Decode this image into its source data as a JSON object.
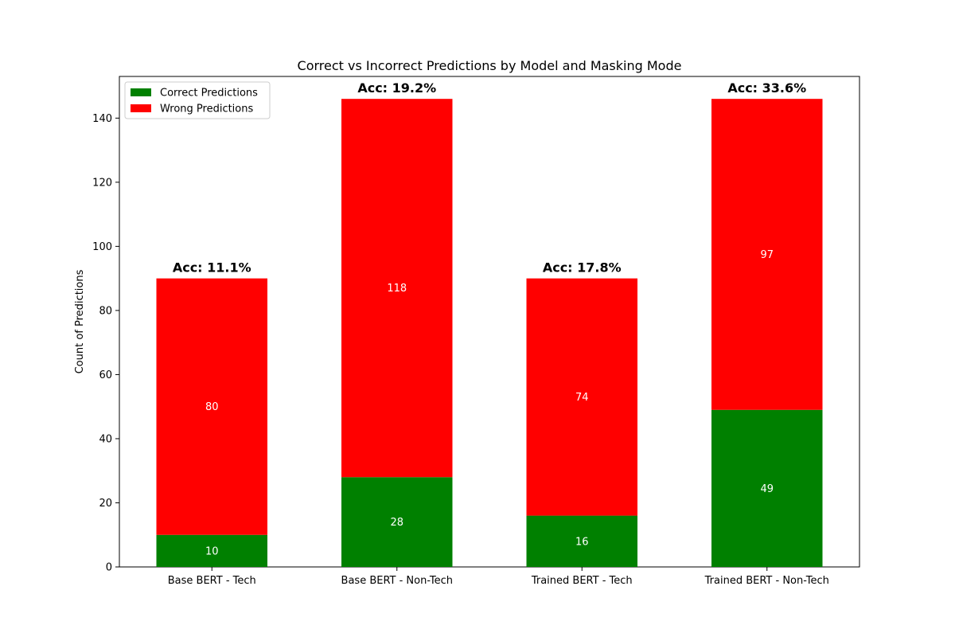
{
  "chart_data": {
    "type": "bar",
    "stacked": true,
    "title": "Correct vs Incorrect Predictions by Model and Masking Mode",
    "xlabel": "",
    "ylabel": "Count of Predictions",
    "categories": [
      "Base BERT - Tech",
      "Base BERT - Non-Tech",
      "Trained BERT - Tech",
      "Trained BERT - Non-Tech"
    ],
    "series": [
      {
        "name": "Correct Predictions",
        "values": [
          10,
          28,
          16,
          49
        ],
        "color": "#008000"
      },
      {
        "name": "Wrong Predictions",
        "values": [
          80,
          118,
          74,
          97
        ],
        "color": "#ff0000"
      }
    ],
    "accuracy_labels": [
      "Acc: 11.1%",
      "Acc: 19.2%",
      "Acc: 17.8%",
      "Acc: 33.6%"
    ],
    "ylim": [
      0,
      153
    ],
    "yticks": [
      0,
      20,
      40,
      60,
      80,
      100,
      120,
      140
    ],
    "grid": false,
    "legend_position": "top-left"
  }
}
